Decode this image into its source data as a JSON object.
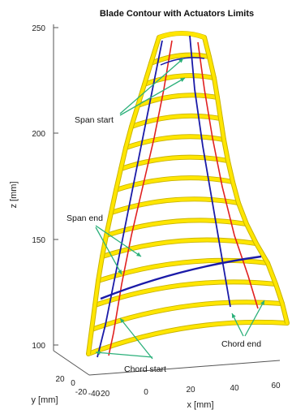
{
  "chart_data": {
    "type": "line",
    "title": "Blade Contour with Actuators Limits",
    "zlabel": "z [mm]",
    "ylabel": "y [mm]",
    "xlabel": "x [mm]",
    "z_ticks": [
      "100",
      "150",
      "200",
      "250"
    ],
    "y_ticks": [
      "20",
      "0",
      "-20",
      "-40"
    ],
    "x_ticks": [
      "-20",
      "0",
      "20",
      "40",
      "60"
    ],
    "zlim": [
      95,
      250
    ],
    "grid": false,
    "colors": {
      "contour": "#ffe600",
      "contour_edge": "#c9b400",
      "chord_limit": "#e02020",
      "span_limit": "#1a1aa8",
      "annotation_arrow": "#2bb07a"
    },
    "annotations": [
      {
        "text": "Span start"
      },
      {
        "text": "Span end"
      },
      {
        "text": "Chord start"
      },
      {
        "text": "Chord end"
      }
    ]
  }
}
